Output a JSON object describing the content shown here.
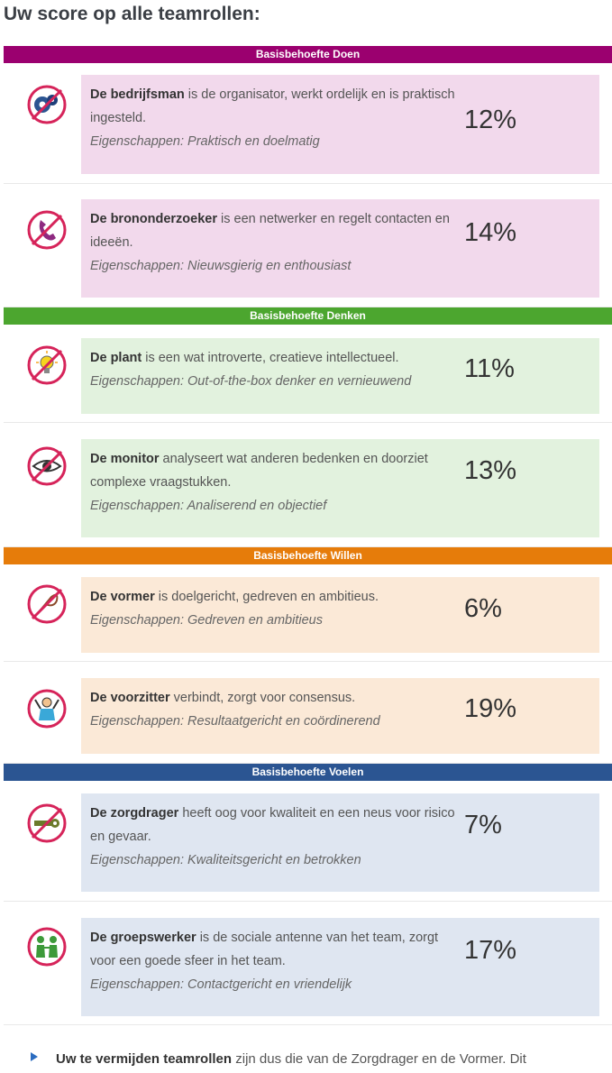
{
  "page_title": "Uw score op alle teamrollen:",
  "sections": [
    {
      "label": "Basisbehoefte Doen",
      "color": "#9b006f",
      "card_color": "#f2d9ec"
    },
    {
      "label": "Basisbehoefte Denken",
      "color": "#4ca62f",
      "card_color": "#e2f2de"
    },
    {
      "label": "Basisbehoefte Willen",
      "color": "#e67c0a",
      "card_color": "#fbe9d7"
    },
    {
      "label": "Basisbehoefte Voelen",
      "color": "#2b5592",
      "card_color": "#dfe6f1"
    }
  ],
  "roles": [
    {
      "name": "De bedrijfsman",
      "desc": " is de organisator, werkt ordelijk en is praktisch ingesteld.",
      "props": "Eigenschappen: Praktisch en doelmatig",
      "score": "12%",
      "icon": "gears-icon"
    },
    {
      "name": "De brononderzoeker",
      "desc": " is een netwerker en regelt contacten en ideeën.",
      "props": "Eigenschappen: Nieuwsgierig en enthousiast",
      "score": "14%",
      "icon": "phone-icon"
    },
    {
      "name": "De plant",
      "desc": " is een wat introverte, creatieve intellectueel.",
      "props": "Eigenschappen: Out-of-the-box denker en vernieuwend",
      "score": "11%",
      "icon": "lightbulb-icon"
    },
    {
      "name": "De monitor",
      "desc": " analyseert wat anderen bedenken en doorziet complexe vraagstukken.",
      "props": "Eigenschappen: Analiserend en objectief",
      "score": "13%",
      "icon": "eye-icon"
    },
    {
      "name": "De vormer",
      "desc": " is doelgericht, gedreven en ambitieus.",
      "props": "Eigenschappen: Gedreven en ambitieus",
      "score": "6%",
      "icon": "whip-icon"
    },
    {
      "name": "De voorzitter",
      "desc": " verbindt, zorgt voor consensus.",
      "props": "Eigenschappen: Resultaatgericht en coördinerend",
      "score": "19%",
      "icon": "chairman-icon"
    },
    {
      "name": "De zorgdrager",
      "desc": " heeft oog voor kwaliteit en een neus voor risico en gevaar.",
      "props": "Eigenschappen: Kwaliteitsgericht en betrokken",
      "score": "7%",
      "icon": "key-icon"
    },
    {
      "name": "De groepswerker",
      "desc": " is de sociale antenne van het team, zorgt voor een goede sfeer in het team.",
      "props": "Eigenschappen: Contactgericht en vriendelijk",
      "score": "17%",
      "icon": "people-icon"
    }
  ],
  "footer": {
    "bold": "Uw te vermijden teamrollen",
    "text": " zijn dus die van de Zorgdrager en de Vormer. Dit"
  }
}
